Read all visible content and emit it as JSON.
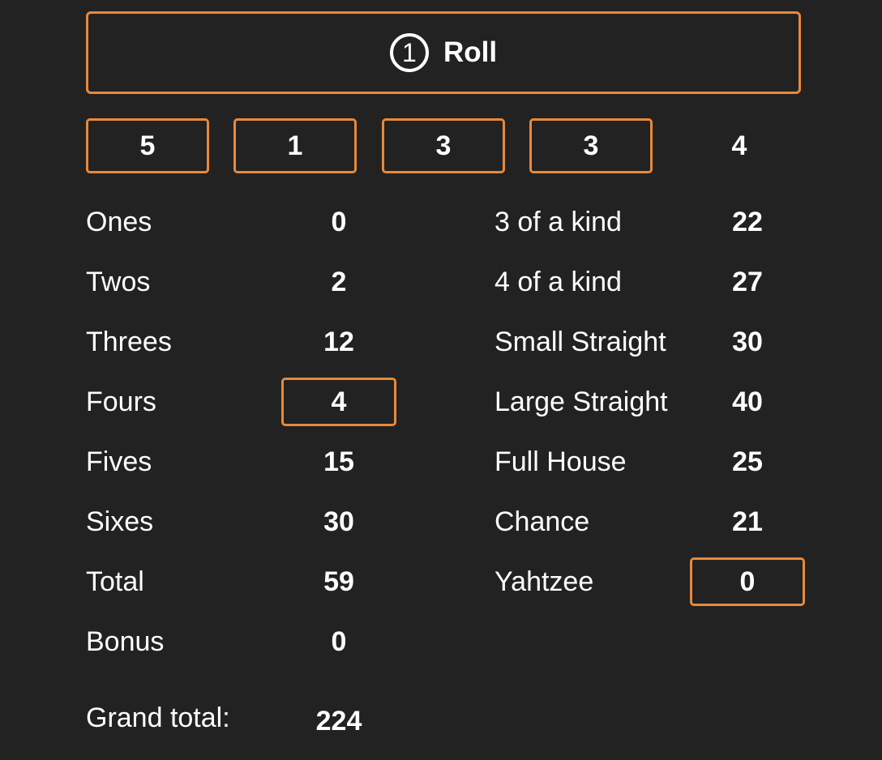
{
  "roll_button": {
    "count": "1",
    "label": "Roll"
  },
  "dice": [
    {
      "value": "5",
      "held": true
    },
    {
      "value": "1",
      "held": true
    },
    {
      "value": "3",
      "held": true
    },
    {
      "value": "3",
      "held": true
    },
    {
      "value": "4",
      "held": false
    }
  ],
  "upper": [
    {
      "label": "Ones",
      "score": "0",
      "selected": false
    },
    {
      "label": "Twos",
      "score": "2",
      "selected": false
    },
    {
      "label": "Threes",
      "score": "12",
      "selected": false
    },
    {
      "label": "Fours",
      "score": "4",
      "selected": true
    },
    {
      "label": "Fives",
      "score": "15",
      "selected": false
    },
    {
      "label": "Sixes",
      "score": "30",
      "selected": false
    }
  ],
  "upper_summary": {
    "total_label": "Total",
    "total": "59",
    "bonus_label": "Bonus",
    "bonus": "0"
  },
  "lower": [
    {
      "label": "3 of a kind",
      "score": "22",
      "selected": false
    },
    {
      "label": "4 of a kind",
      "score": "27",
      "selected": false
    },
    {
      "label": "Small Straight",
      "score": "30",
      "selected": false
    },
    {
      "label": "Large Straight",
      "score": "40",
      "selected": false
    },
    {
      "label": "Full House",
      "score": "25",
      "selected": false
    },
    {
      "label": "Chance",
      "score": "21",
      "selected": false
    },
    {
      "label": "Yahtzee",
      "score": "0",
      "selected": true
    }
  ],
  "grand_total": {
    "label": "Grand total:",
    "value": "224"
  },
  "colors": {
    "background": "#222222",
    "accent": "#e8893a",
    "text": "#ffffff"
  }
}
